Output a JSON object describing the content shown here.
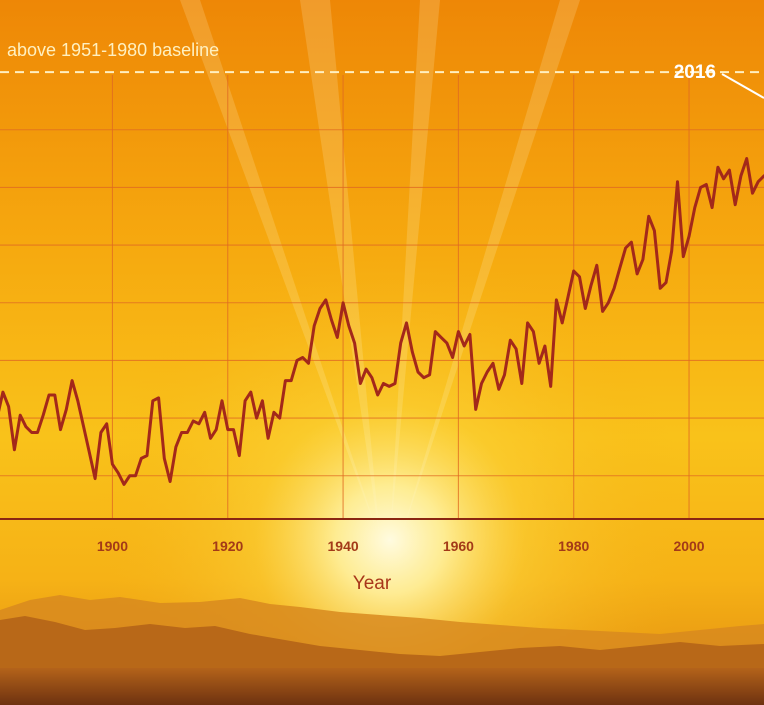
{
  "colors": {
    "sky_top": "#ef8a08",
    "sky_mid": "#f7b812",
    "glow": "#fff6b0",
    "grid": "#e06a22",
    "line": "#a3281a",
    "axis": "#8a2612",
    "tick_label": "#a33a18",
    "baseline_dash": "#fff0c0",
    "annotation": "#ffffff",
    "mountains_far": "#d6891c",
    "mountains_near": "#b8681a",
    "ground": "#7a3a10"
  },
  "chart_data": {
    "type": "line",
    "title": "",
    "xlabel": "Year",
    "ylabel": "",
    "xlim": [
      1880.5,
      2013
    ],
    "ylim": [
      -0.55,
      1.25
    ],
    "x_ticks": [
      1900,
      1920,
      1940,
      1960,
      1980,
      2000
    ],
    "y_grid": [
      -0.4,
      -0.2,
      0.0,
      0.2,
      0.4,
      0.6,
      0.8,
      1.0
    ],
    "grid": true,
    "baseline_label": "above 1951-1980 baseline",
    "baseline_value": 1.0,
    "annotation": {
      "label": "2016"
    },
    "series": [
      {
        "x": [
          1880,
          1881,
          1882,
          1883,
          1884,
          1885,
          1886,
          1887,
          1888,
          1889,
          1890,
          1891,
          1892,
          1893,
          1894,
          1895,
          1896,
          1897,
          1898,
          1899,
          1900,
          1901,
          1902,
          1903,
          1904,
          1905,
          1906,
          1907,
          1908,
          1909,
          1910,
          1911,
          1912,
          1913,
          1914,
          1915,
          1916,
          1917,
          1918,
          1919,
          1920,
          1921,
          1922,
          1923,
          1924,
          1925,
          1926,
          1927,
          1928,
          1929,
          1930,
          1931,
          1932,
          1933,
          1934,
          1935,
          1936,
          1937,
          1938,
          1939,
          1940,
          1941,
          1942,
          1943,
          1944,
          1945,
          1946,
          1947,
          1948,
          1949,
          1950,
          1951,
          1952,
          1953,
          1954,
          1955,
          1956,
          1957,
          1958,
          1959,
          1960,
          1961,
          1962,
          1963,
          1964,
          1965,
          1966,
          1967,
          1968,
          1969,
          1970,
          1971,
          1972,
          1973,
          1974,
          1975,
          1976,
          1977,
          1978,
          1979,
          1980,
          1981,
          1982,
          1983,
          1984,
          1985,
          1986,
          1987,
          1988,
          1989,
          1990,
          1991,
          1992,
          1993,
          1994,
          1995,
          1996,
          1997,
          1998,
          1999,
          2000,
          2001,
          2002,
          2003,
          2004,
          2005,
          2006,
          2007,
          2008,
          2009,
          2010,
          2011,
          2012,
          2013
        ],
        "y": [
          -0.2,
          -0.11,
          -0.16,
          -0.31,
          -0.19,
          -0.23,
          -0.25,
          -0.25,
          -0.19,
          -0.12,
          -0.12,
          -0.24,
          -0.17,
          -0.07,
          -0.14,
          -0.23,
          -0.32,
          -0.41,
          -0.25,
          -0.22,
          -0.36,
          -0.39,
          -0.43,
          -0.4,
          -0.4,
          -0.34,
          -0.33,
          -0.14,
          -0.13,
          -0.34,
          -0.42,
          -0.3,
          -0.25,
          -0.25,
          -0.21,
          -0.22,
          -0.18,
          -0.27,
          -0.24,
          -0.14,
          -0.24,
          -0.24,
          -0.33,
          -0.14,
          -0.11,
          -0.2,
          -0.14,
          -0.27,
          -0.18,
          -0.2,
          -0.07,
          -0.07,
          0.0,
          0.01,
          -0.01,
          0.12,
          0.18,
          0.21,
          0.14,
          0.08,
          0.2,
          0.12,
          0.06,
          -0.08,
          -0.03,
          -0.06,
          -0.12,
          -0.08,
          -0.09,
          -0.08,
          0.06,
          0.13,
          0.03,
          -0.04,
          -0.06,
          -0.05,
          0.1,
          0.08,
          0.06,
          0.01,
          0.1,
          0.05,
          0.09,
          -0.17,
          -0.08,
          -0.04,
          -0.01,
          -0.1,
          -0.05,
          0.07,
          0.04,
          -0.08,
          0.13,
          0.1,
          -0.01,
          0.05,
          -0.09,
          0.21,
          0.13,
          0.22,
          0.31,
          0.29,
          0.18,
          0.26,
          0.33,
          0.17,
          0.2,
          0.25,
          0.32,
          0.39,
          0.41,
          0.3,
          0.35,
          0.5,
          0.45,
          0.25,
          0.27,
          0.38,
          0.62,
          0.36,
          0.43,
          0.53,
          0.6,
          0.61,
          0.53,
          0.67,
          0.63,
          0.66,
          0.54,
          0.64,
          0.7,
          0.58,
          0.62,
          0.64
        ]
      }
    ]
  }
}
